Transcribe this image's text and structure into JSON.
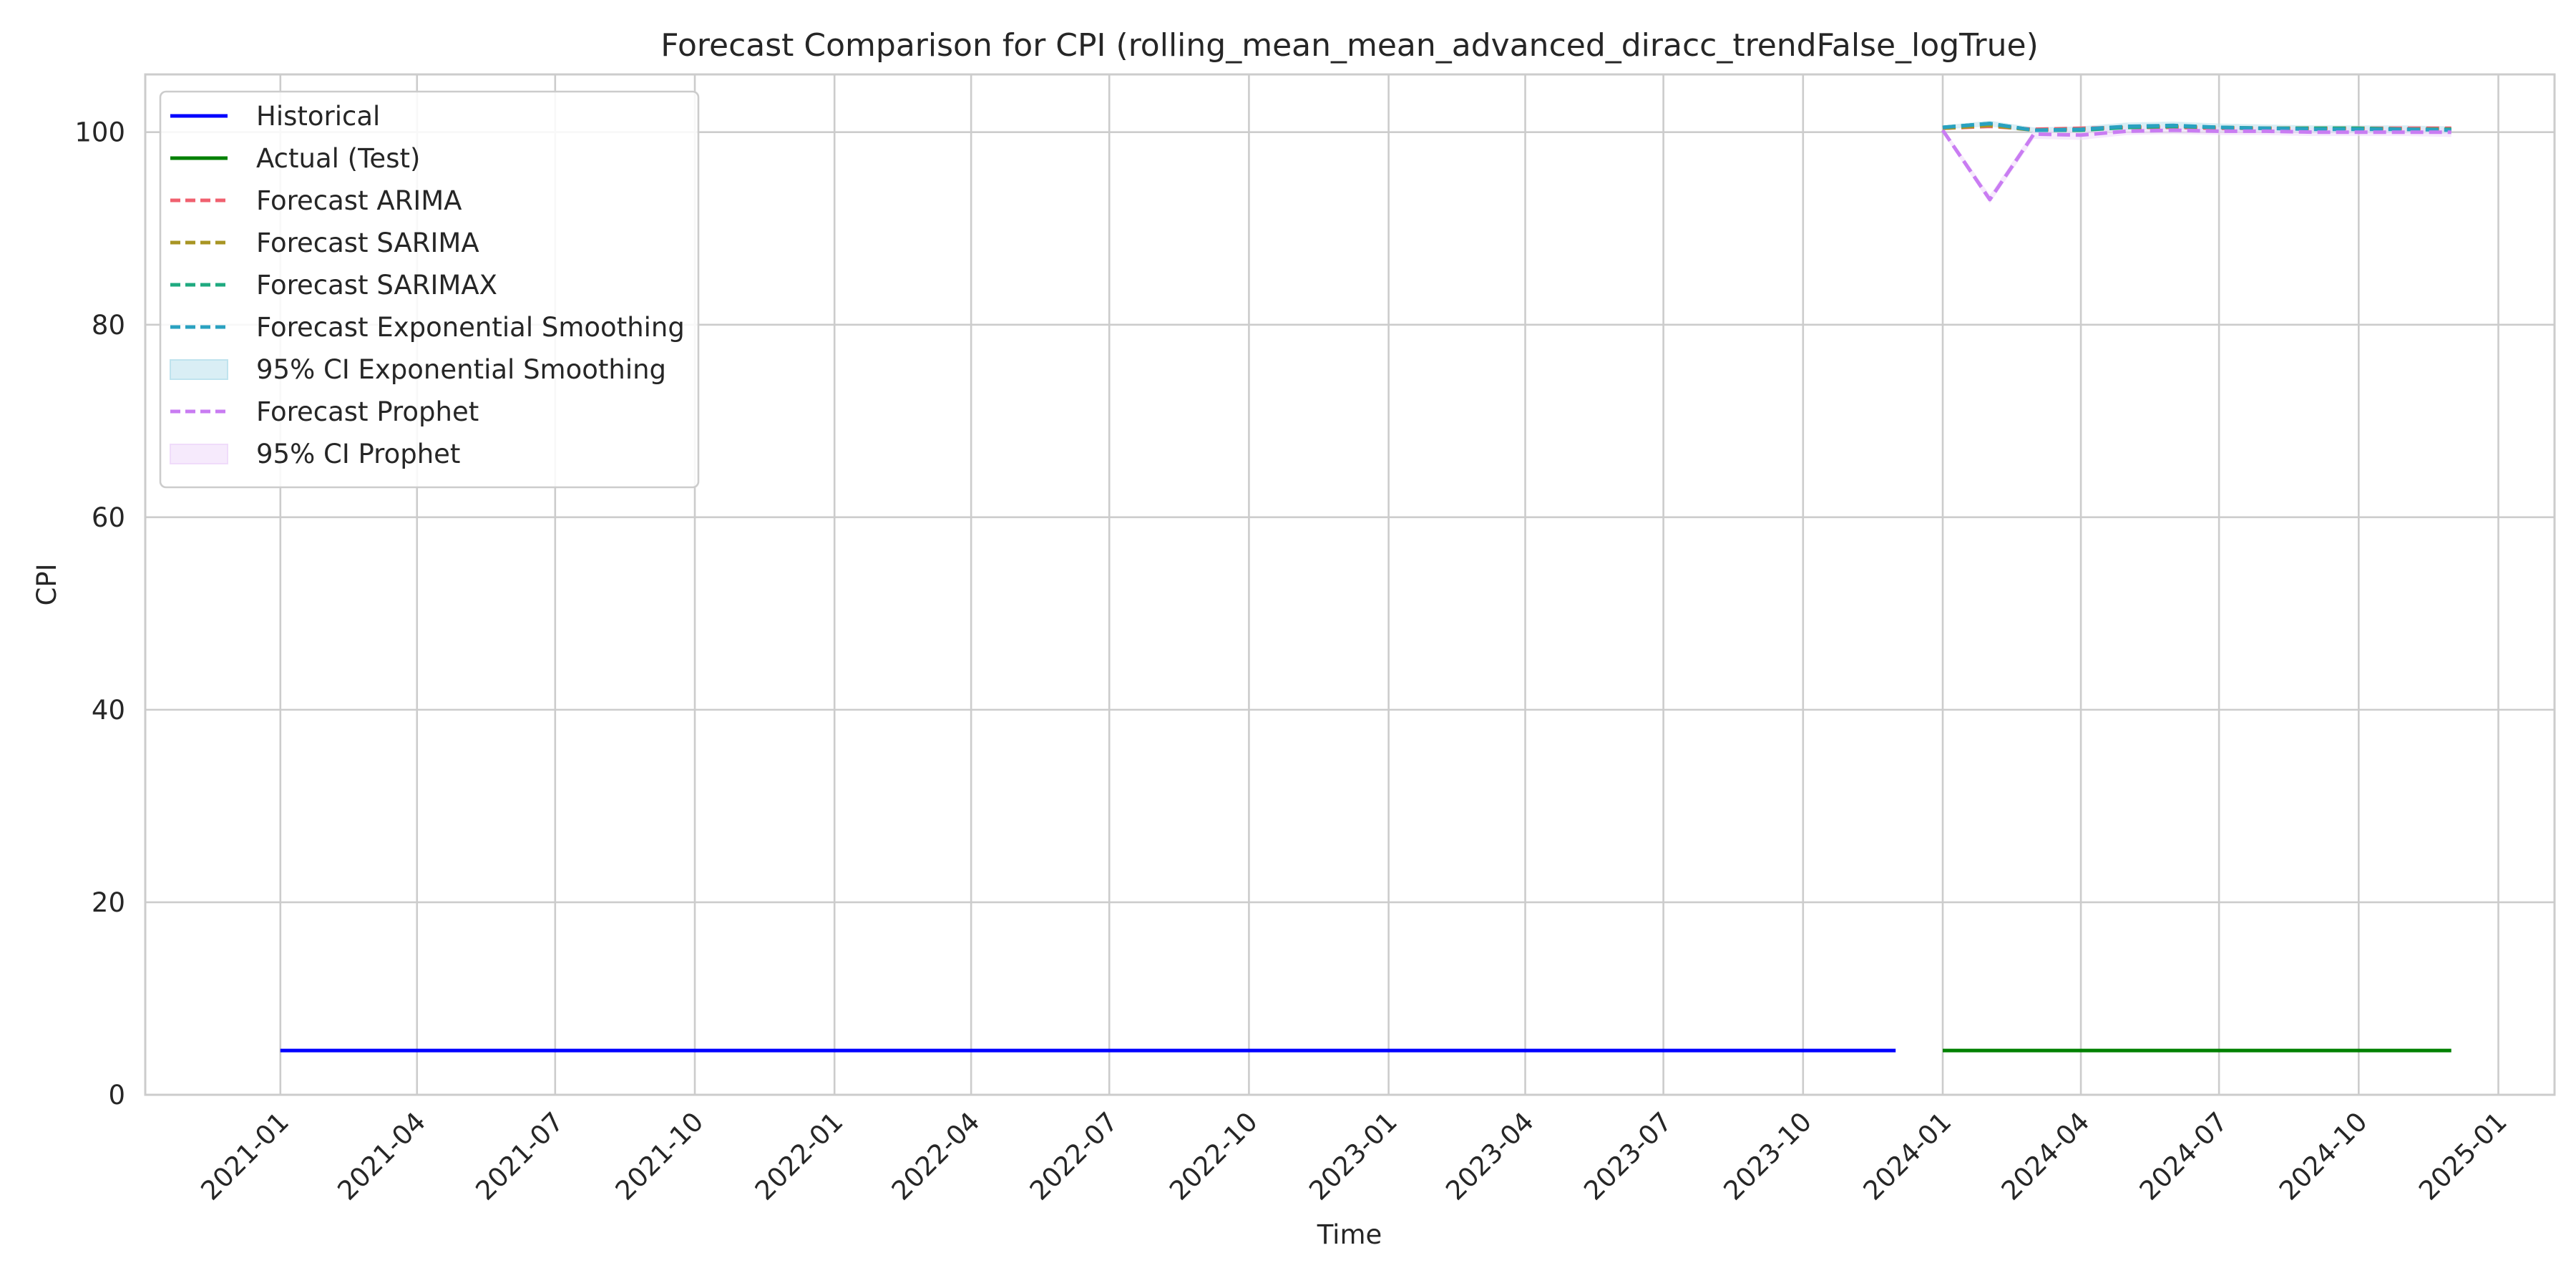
{
  "chart_data": {
    "type": "line",
    "title": "Forecast Comparison for CPI (rolling_mean_mean_advanced_diracc_trendFalse_logTrue)",
    "xlabel": "Time",
    "ylabel": "CPI",
    "xlim": [
      "2020-10-04",
      "2025-02-07"
    ],
    "ylim": [
      0,
      106
    ],
    "x_ticks": [
      "2021-01",
      "2021-04",
      "2021-07",
      "2021-10",
      "2022-01",
      "2022-04",
      "2022-07",
      "2022-10",
      "2023-01",
      "2023-04",
      "2023-07",
      "2023-10",
      "2024-01",
      "2024-04",
      "2024-07",
      "2024-10",
      "2025-01"
    ],
    "y_ticks": [
      0,
      20,
      40,
      60,
      80,
      100
    ],
    "grid": true,
    "legend_position": "top-left",
    "series": [
      {
        "name": "Historical",
        "style": "solid",
        "color": "#0000ff",
        "x": [
          "2021-01-01",
          "2023-12-01"
        ],
        "y": [
          4.6,
          4.6
        ]
      },
      {
        "name": "Actual (Test)",
        "style": "solid",
        "color": "#008000",
        "x": [
          "2024-01-01",
          "2024-12-01"
        ],
        "y": [
          4.6,
          4.6
        ]
      },
      {
        "name": "Forecast ARIMA",
        "style": "dashed",
        "color": "#f0606f",
        "x": [
          "2024-01-01",
          "2024-02-01",
          "2024-03-01",
          "2024-04-01",
          "2024-05-01",
          "2024-06-01",
          "2024-07-01",
          "2024-08-01",
          "2024-09-01",
          "2024-10-01",
          "2024-11-01",
          "2024-12-01"
        ],
        "y": [
          100.4,
          100.6,
          100.3,
          100.4,
          100.5,
          100.5,
          100.4,
          100.4,
          100.4,
          100.4,
          100.4,
          100.4
        ]
      },
      {
        "name": "Forecast SARIMA",
        "style": "dashed",
        "color": "#a89524",
        "x": [
          "2024-01-01",
          "2024-02-01",
          "2024-03-01",
          "2024-04-01",
          "2024-05-01",
          "2024-06-01",
          "2024-07-01",
          "2024-08-01",
          "2024-09-01",
          "2024-10-01",
          "2024-11-01",
          "2024-12-01"
        ],
        "y": [
          100.4,
          100.7,
          100.2,
          100.3,
          100.5,
          100.6,
          100.5,
          100.4,
          100.4,
          100.4,
          100.3,
          100.3
        ]
      },
      {
        "name": "Forecast SARIMAX",
        "style": "dashed",
        "color": "#1faa80",
        "x": [
          "2024-01-01",
          "2024-02-01",
          "2024-03-01",
          "2024-04-01",
          "2024-05-01",
          "2024-06-01",
          "2024-07-01",
          "2024-08-01",
          "2024-09-01",
          "2024-10-01",
          "2024-11-01",
          "2024-12-01"
        ],
        "y": [
          100.5,
          100.9,
          100.2,
          100.2,
          100.5,
          100.6,
          100.5,
          100.4,
          100.4,
          100.4,
          100.3,
          100.3
        ]
      },
      {
        "name": "Forecast Exponential Smoothing",
        "style": "dashed",
        "color": "#2aa1c0",
        "x": [
          "2024-01-01",
          "2024-02-01",
          "2024-03-01",
          "2024-04-01",
          "2024-05-01",
          "2024-06-01",
          "2024-07-01",
          "2024-08-01",
          "2024-09-01",
          "2024-10-01",
          "2024-11-01",
          "2024-12-01"
        ],
        "y": [
          100.5,
          100.9,
          100.2,
          100.3,
          100.6,
          100.7,
          100.5,
          100.4,
          100.3,
          100.3,
          100.3,
          100.2
        ]
      },
      {
        "name": "95% CI Exponential Smoothing",
        "style": "band",
        "color": "#bfe3ee",
        "x": [
          "2024-01-01",
          "2024-02-01",
          "2024-03-01",
          "2024-04-01",
          "2024-05-01",
          "2024-06-01",
          "2024-07-01",
          "2024-08-01",
          "2024-09-01",
          "2024-10-01",
          "2024-11-01",
          "2024-12-01"
        ],
        "lower": [
          100.3,
          100.6,
          99.9,
          100.0,
          100.2,
          100.3,
          100.1,
          100.0,
          99.9,
          99.9,
          99.9,
          99.8
        ],
        "upper": [
          100.7,
          101.2,
          100.5,
          100.6,
          101.0,
          101.1,
          100.9,
          100.8,
          100.7,
          100.7,
          100.7,
          100.6
        ]
      },
      {
        "name": "Forecast Prophet",
        "style": "dashed",
        "color": "#c97cf2",
        "x": [
          "2024-01-01",
          "2024-02-01",
          "2024-03-01",
          "2024-04-01",
          "2024-05-01",
          "2024-06-01",
          "2024-07-01",
          "2024-08-01",
          "2024-09-01",
          "2024-10-01",
          "2024-11-01",
          "2024-12-01"
        ],
        "y": [
          100.2,
          93.0,
          99.8,
          99.7,
          100.1,
          100.2,
          100.1,
          100.1,
          100.0,
          100.0,
          100.0,
          100.0
        ]
      },
      {
        "name": "95% CI Prophet",
        "style": "band",
        "color": "#f0dcfa",
        "x": [
          "2024-01-01",
          "2024-02-01",
          "2024-03-01",
          "2024-04-01",
          "2024-05-01",
          "2024-06-01",
          "2024-07-01",
          "2024-08-01",
          "2024-09-01",
          "2024-10-01",
          "2024-11-01",
          "2024-12-01"
        ],
        "lower": [
          99.9,
          92.6,
          99.3,
          99.2,
          99.7,
          99.8,
          99.7,
          99.7,
          99.6,
          99.6,
          99.6,
          99.5
        ],
        "upper": [
          100.5,
          93.5,
          100.2,
          100.2,
          100.5,
          100.6,
          100.5,
          100.5,
          100.4,
          100.4,
          100.4,
          100.4
        ]
      }
    ]
  }
}
